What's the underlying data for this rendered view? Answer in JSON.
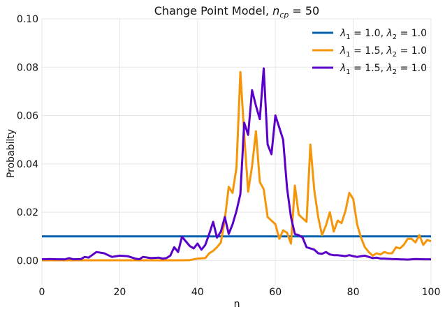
{
  "chart_data": {
    "type": "line",
    "title": "Change Point Model, n_cp = 50",
    "title_parts": {
      "main": "Change Point Model, ",
      "var": "n",
      "sub": "cp",
      "rest": " = 50"
    },
    "xlabel": "n",
    "ylabel": "Probabilty",
    "xlim": [
      0,
      100
    ],
    "ylim": [
      -0.01,
      0.1
    ],
    "xticks": [
      "0",
      "20",
      "40",
      "60",
      "80",
      "100"
    ],
    "yticks": [
      "0.00",
      "0.02",
      "0.04",
      "0.06",
      "0.08",
      "0.10"
    ],
    "grid": true,
    "legend_position": "top-right",
    "series": [
      {
        "name": "λ1 = 1.0, λ2 = 1.0",
        "legend": {
          "l1": "1.0",
          "l2": "1.0"
        },
        "color": "#0060b0",
        "x": [
          0,
          100
        ],
        "y": [
          0.01,
          0.01
        ]
      },
      {
        "name": "λ1 = 1.5, λ2 = 1.0",
        "legend": {
          "l1": "1.5",
          "l2": "1.0"
        },
        "color": "#f5960a",
        "x": [
          0,
          2,
          4,
          6,
          8,
          10,
          12,
          14,
          16,
          18,
          20,
          22,
          24,
          26,
          28,
          30,
          32,
          34,
          36,
          38,
          40,
          42,
          43,
          44,
          45,
          46,
          47,
          48,
          49,
          50,
          51,
          52,
          53,
          54,
          55,
          56,
          57,
          58,
          59,
          60,
          61,
          62,
          63,
          64,
          65,
          66,
          67,
          68,
          69,
          70,
          71,
          72,
          73,
          74,
          75,
          76,
          77,
          78,
          79,
          80,
          81,
          82,
          83,
          84,
          85,
          86,
          87,
          88,
          89,
          90,
          91,
          92,
          93,
          94,
          95,
          96,
          97,
          98,
          99,
          100
        ],
        "y": [
          0.0001,
          0.0001,
          0.0001,
          0.0001,
          0.0001,
          0.0001,
          0.0001,
          0.0001,
          0.0001,
          0.0001,
          0.0001,
          0.0001,
          0.0001,
          0.0001,
          0.0001,
          0.0001,
          0.0001,
          0.0001,
          0.0001,
          0.0002,
          0.0008,
          0.001,
          0.003,
          0.004,
          0.0055,
          0.0075,
          0.017,
          0.0305,
          0.028,
          0.0385,
          0.078,
          0.052,
          0.0285,
          0.039,
          0.0535,
          0.0325,
          0.0295,
          0.018,
          0.0165,
          0.015,
          0.009,
          0.0125,
          0.0115,
          0.007,
          0.031,
          0.019,
          0.0175,
          0.016,
          0.048,
          0.029,
          0.018,
          0.0105,
          0.0145,
          0.02,
          0.012,
          0.0165,
          0.0155,
          0.0205,
          0.028,
          0.0255,
          0.015,
          0.0095,
          0.0055,
          0.0035,
          0.002,
          0.003,
          0.0025,
          0.0035,
          0.003,
          0.003,
          0.0055,
          0.005,
          0.0065,
          0.009,
          0.009,
          0.0075,
          0.0105,
          0.0065,
          0.0085,
          0.008
        ]
      },
      {
        "name": "λ1 = 1.5, λ2 = 1.0",
        "legend": {
          "l1": "1.5",
          "l2": "1.0"
        },
        "color": "#5a00c8",
        "x": [
          0,
          2,
          4,
          6,
          7,
          8,
          10,
          11,
          12,
          14,
          16,
          18,
          20,
          22,
          24,
          25,
          26,
          28,
          30,
          31,
          32,
          33,
          34,
          35,
          36,
          38,
          39,
          40,
          41,
          42,
          43,
          44,
          45,
          46,
          47,
          48,
          49,
          50,
          51,
          52,
          53,
          54,
          55,
          56,
          57,
          58,
          59,
          60,
          61,
          62,
          63,
          64,
          65,
          66,
          67,
          68,
          69,
          70,
          71,
          72,
          73,
          74,
          75,
          76,
          77,
          78,
          79,
          80,
          81,
          82,
          83,
          84,
          85,
          86,
          87,
          88,
          90,
          92,
          94,
          96,
          98,
          100
        ],
        "y": [
          0.0005,
          0.0006,
          0.0005,
          0.0005,
          0.001,
          0.0005,
          0.0006,
          0.0015,
          0.0012,
          0.0035,
          0.003,
          0.0015,
          0.002,
          0.0018,
          0.0008,
          0.0005,
          0.0015,
          0.001,
          0.0012,
          0.0008,
          0.001,
          0.002,
          0.0055,
          0.0035,
          0.0098,
          0.006,
          0.005,
          0.007,
          0.0045,
          0.0065,
          0.011,
          0.016,
          0.0095,
          0.012,
          0.018,
          0.011,
          0.015,
          0.0205,
          0.0275,
          0.057,
          0.052,
          0.0705,
          0.064,
          0.0585,
          0.0795,
          0.048,
          0.044,
          0.06,
          0.055,
          0.05,
          0.03,
          0.018,
          0.011,
          0.0105,
          0.0095,
          0.0055,
          0.005,
          0.0045,
          0.003,
          0.0028,
          0.0035,
          0.0025,
          0.0022,
          0.0022,
          0.002,
          0.0018,
          0.0022,
          0.0018,
          0.0015,
          0.0018,
          0.002,
          0.0015,
          0.001,
          0.0012,
          0.0008,
          0.0008,
          0.0006,
          0.0005,
          0.0004,
          0.0006,
          0.0005,
          0.0005
        ]
      }
    ]
  }
}
